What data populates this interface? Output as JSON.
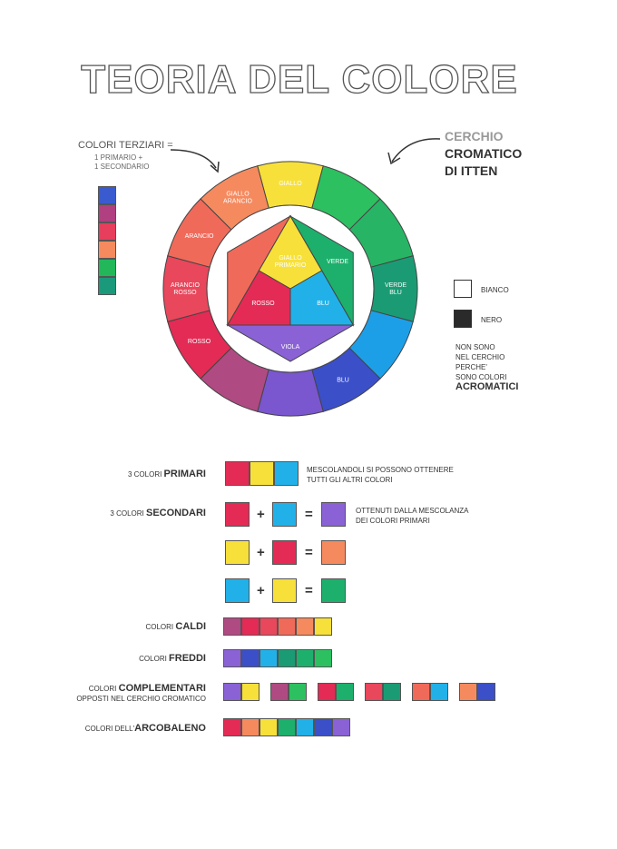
{
  "title": "TEORIA DEL COLORE",
  "terziari": {
    "heading": "COLORI TERZIARI =",
    "line1": "1 PRIMARIO +",
    "line2": "1 SECONDARIO",
    "strip": [
      "#3a5bd0",
      "#b04080",
      "#e63e5c",
      "#f58a5e",
      "#22b85a",
      "#1a9a7a"
    ]
  },
  "itten": {
    "line1": "CERCHIO",
    "line2": "CROMATICO",
    "line3": "DI ITTEN"
  },
  "wheel": {
    "outer": [
      {
        "label": "GIALLO",
        "color": "#f7e03a"
      },
      {
        "label": "",
        "color": "#2dc061"
      },
      {
        "label": "",
        "color": "#27b565"
      },
      {
        "label": "VERDE BLU",
        "color": "#1b9b74"
      },
      {
        "label": "",
        "color": "#1d9fe8"
      },
      {
        "label": "BLU",
        "color": "#3b4fc9"
      },
      {
        "label": "",
        "color": "#7a56cf"
      },
      {
        "label": "",
        "color": "#b04a82"
      },
      {
        "label": "ROSSO",
        "color": "#e32b55"
      },
      {
        "label": "ARANCIO ROSSO",
        "color": "#e8475c"
      },
      {
        "label": "ARANCIO",
        "color": "#f06a5a"
      },
      {
        "label": "GIALLO ARANCIO",
        "color": "#f58a5f"
      }
    ],
    "triangle_top": {
      "label1": "GIALLO",
      "label2": "PRIMARIO",
      "color": "#f7e03a"
    },
    "triangle_left": {
      "label": "ROSSO",
      "color": "#e32b55"
    },
    "triangle_right": {
      "label": "BLU",
      "color": "#21b1e8"
    },
    "side_orange": {
      "color": "#f06a5a"
    },
    "side_green": {
      "label": "VERDE",
      "color": "#1db06c"
    },
    "side_violet": {
      "label": "VIOLA",
      "color": "#8a62d6"
    }
  },
  "acromatici": {
    "bianco": "BIANCO",
    "nero": "NERO",
    "text1": "NON SONO",
    "text2": "NEL CERCHIO",
    "text3": "PERCHE'",
    "text4": "SONO COLORI",
    "strong": "ACROMATICI"
  },
  "rows": {
    "primari": {
      "pre": "3 COLORI ",
      "strong": "PRIMARI",
      "note1": "MESCOLANDOLI SI POSSONO OTTENERE",
      "note2": "TUTTI GLI ALTRI COLORI",
      "colors": [
        "#e32b55",
        "#f7e03a",
        "#21b1e8"
      ]
    },
    "secondari": {
      "pre": "3 COLORI ",
      "strong": "SECONDARI",
      "note1": "OTTENUTI DALLA MESCOLANZA",
      "note2": "DEI COLORI PRIMARI"
    },
    "mix": [
      {
        "a": "#e32b55",
        "b": "#21b1e8",
        "r": "#8a62d6"
      },
      {
        "a": "#f7e03a",
        "b": "#e32b55",
        "r": "#f58a5f"
      },
      {
        "a": "#21b1e8",
        "b": "#f7e03a",
        "r": "#1db06c"
      }
    ],
    "caldi": {
      "pre": "COLORI ",
      "strong": "CALDI",
      "colors": [
        "#b04a82",
        "#e32b55",
        "#e8475c",
        "#f06a5a",
        "#f58a5f",
        "#f7e03a"
      ]
    },
    "freddi": {
      "pre": "COLORI ",
      "strong": "FREDDI",
      "colors": [
        "#8a62d6",
        "#3b4fc9",
        "#21b1e8",
        "#1b9b74",
        "#1db06c",
        "#2dc061"
      ]
    },
    "complementari": {
      "pre": "COLORI ",
      "strong": "COMPLEMENTARI",
      "line2": "OPPOSTI NEL CERCHIO CROMATICO",
      "pairs": [
        [
          "#8a62d6",
          "#f7e03a"
        ],
        [
          "#b04a82",
          "#2dc061"
        ],
        [
          "#e32b55",
          "#1db06c"
        ],
        [
          "#e8475c",
          "#1b9b74"
        ],
        [
          "#f06a5a",
          "#21b1e8"
        ],
        [
          "#f58a5f",
          "#3b4fc9"
        ]
      ]
    },
    "arcobaleno": {
      "pre": "COLORI DELL'",
      "strong": "ARCOBALENO",
      "colors": [
        "#e32b55",
        "#f58a5f",
        "#f7e03a",
        "#1db06c",
        "#21b1e8",
        "#3b4fc9",
        "#8a62d6"
      ]
    },
    "ops": {
      "plus": "+",
      "eq": "="
    }
  }
}
